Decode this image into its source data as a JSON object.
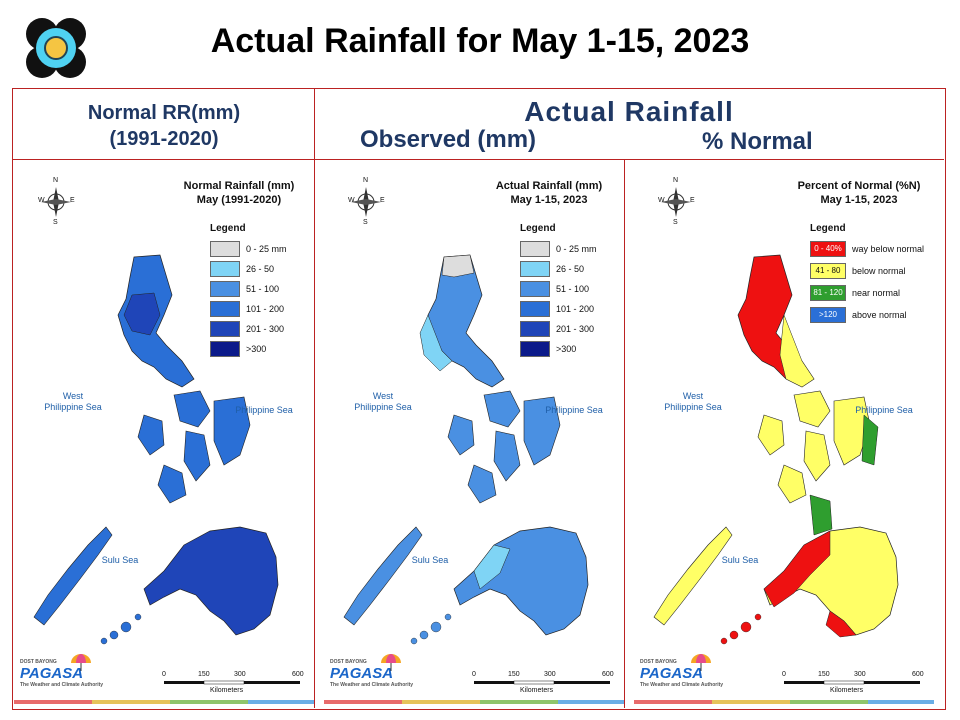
{
  "title": "Actual Rainfall for May 1-15, 2023",
  "header": {
    "normal_line1": "Normal RR(mm)",
    "normal_line2": "(1991-2020)",
    "actual": "Actual Rainfall",
    "observed": "Observed (mm)",
    "percent": "% Normal"
  },
  "panels": [
    {
      "title_line1": "Normal Rainfall (mm)",
      "title_line2": "May (1991-2020)",
      "legend_title": "Legend",
      "legend": [
        {
          "label": "0 - 25 mm",
          "color": "#dddddd"
        },
        {
          "label": "26 - 50",
          "color": "#7fd4f5"
        },
        {
          "label": "51 - 100",
          "color": "#4a90e2"
        },
        {
          "label": "101 - 200",
          "color": "#2a6fd6"
        },
        {
          "label": "201 - 300",
          "color": "#1f45b8"
        },
        {
          "label": ">300",
          "color": "#0b1a8a"
        }
      ],
      "seas": {
        "west_line1": "West",
        "west_line2": "Philippine Sea",
        "east": "Philippine Sea",
        "south": "Sulu Sea"
      },
      "scale": {
        "ticks": [
          "0",
          "150",
          "300",
          "600"
        ],
        "unit": "Kilometers"
      },
      "main_color": "#2a6fd6",
      "dark_color": "#1f45b8"
    },
    {
      "title_line1": "Actual Rainfall (mm)",
      "title_line2": "May 1-15, 2023",
      "legend_title": "Legend",
      "legend": [
        {
          "label": "0 - 25 mm",
          "color": "#dddddd"
        },
        {
          "label": "26 - 50",
          "color": "#7fd4f5"
        },
        {
          "label": "51 - 100",
          "color": "#4a90e2"
        },
        {
          "label": "101 - 200",
          "color": "#2a6fd6"
        },
        {
          "label": "201 - 300",
          "color": "#1f45b8"
        },
        {
          "label": ">300",
          "color": "#0b1a8a"
        }
      ],
      "seas": {
        "west_line1": "West",
        "west_line2": "Philippine Sea",
        "east": "Philippine Sea",
        "south": "Sulu Sea"
      },
      "scale": {
        "ticks": [
          "0",
          "150",
          "300",
          "600"
        ],
        "unit": "Kilometers"
      },
      "main_color": "#4a90e2",
      "dark_color": "#2a6fd6"
    },
    {
      "title_line1": "Percent of Normal (%N)",
      "title_line2": "May 1-15, 2023",
      "legend_title": "Legend",
      "legend": [
        {
          "swatch": "0 - 40%",
          "label": "way below normal",
          "color": "#ee1111"
        },
        {
          "swatch": "41 - 80",
          "label": "below normal",
          "color": "#ffff66"
        },
        {
          "swatch": "81 - 120",
          "label": "near normal",
          "color": "#2f9e2f"
        },
        {
          "swatch": ">120",
          "label": "above normal",
          "color": "#2a6fd6"
        }
      ],
      "seas": {
        "west_line1": "West",
        "west_line2": "Philippine Sea",
        "east": "Philippine Sea",
        "south": "Sulu Sea"
      },
      "scale": {
        "ticks": [
          "0",
          "150",
          "300",
          "600"
        ],
        "unit": "Kilometers"
      },
      "main_color": "#ffff66",
      "dark_color": "#ee1111"
    }
  ],
  "brand": {
    "name": "PAGASA",
    "tagline": "The Weather and Climate Authority",
    "prefix": "DOST BAYONG"
  },
  "compass": {
    "n": "N",
    "s": "S",
    "e": "E",
    "w": "W"
  }
}
